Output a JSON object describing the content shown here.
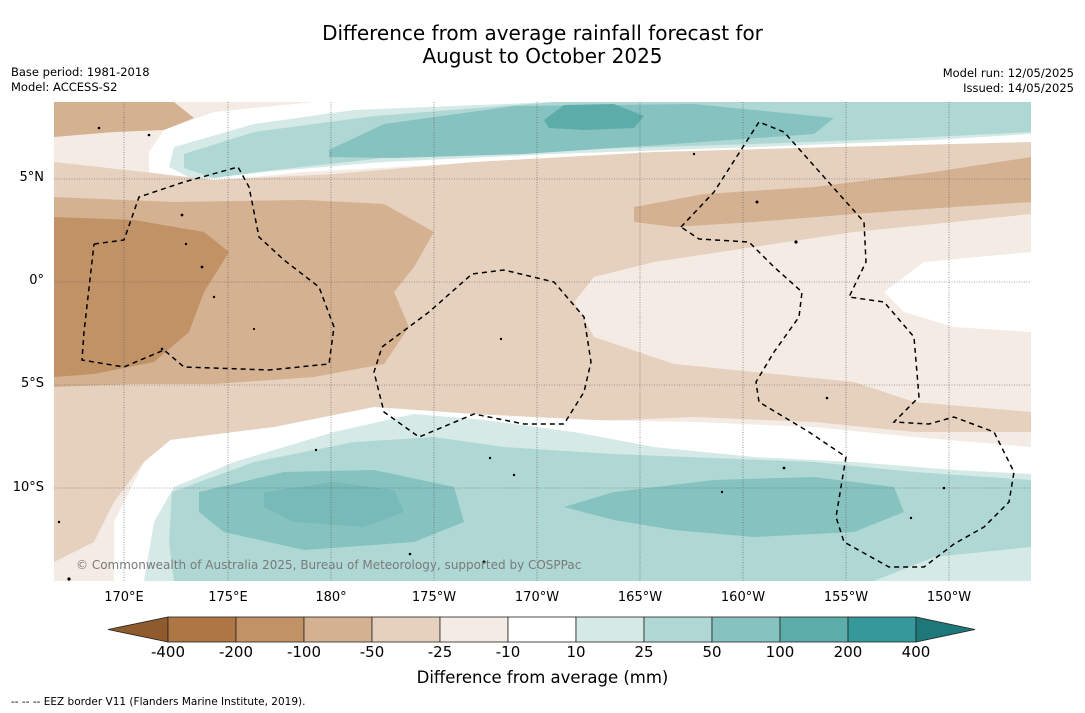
{
  "title": {
    "line1": "Difference from average rainfall forecast for",
    "line2": "August to October 2025"
  },
  "meta_left": {
    "base_period": "Base period: 1981-2018",
    "model": "Model: ACCESS-S2"
  },
  "meta_right": {
    "model_run": "Model run: 12/05/2025",
    "issued": "Issued: 14/05/2025"
  },
  "latitude_labels": [
    "5°N",
    "0°",
    "5°S",
    "10°S"
  ],
  "longitude_labels": [
    "170°E",
    "175°E",
    "180°",
    "175°W",
    "170°W",
    "165°W",
    "160°W",
    "155°W",
    "150°W"
  ],
  "copyright": "© Commonwealth of Australia 2025, Bureau of Meteorology, supported by COSPPac",
  "colorbar": {
    "title": "Difference from average (mm)",
    "tick_labels": [
      "-400",
      "-200",
      "-100",
      "-50",
      "-25",
      "-10",
      "10",
      "25",
      "50",
      "100",
      "200",
      "400"
    ],
    "colors": {
      "below_-400": "#8f5a2c",
      "-400_-200": "#ad7642",
      "-200_-100": "#c19266",
      "-100_-50": "#d4b191",
      "-50_-25": "#e6d1bf",
      "-25_-10": "#f4ebe4",
      "-10_10": "#ffffff",
      "10_25": "#d5eae7",
      "25_50": "#afd8d5",
      "50_100": "#86c2c0",
      "100_200": "#5cacaa",
      "200_400": "#35989a",
      "above_400": "#1e7778"
    }
  },
  "legend_note": "--  --  -- EEZ border V11 (Flanders Marine Institute, 2019)."
}
